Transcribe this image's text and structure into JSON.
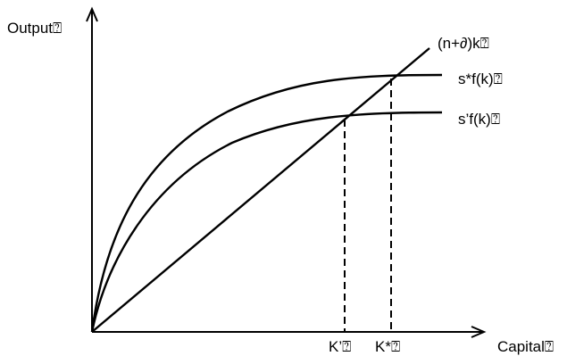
{
  "diagram": {
    "y_axis_label": "Output",
    "x_axis_label": "Capital",
    "line_label": "(n+∂)k",
    "high_curve_label": "s*f(k)",
    "low_curve_label": "s’f(k)",
    "k_prime_label": "K’",
    "k_star_label": "K*",
    "missing_glyph": "⍰"
  }
}
